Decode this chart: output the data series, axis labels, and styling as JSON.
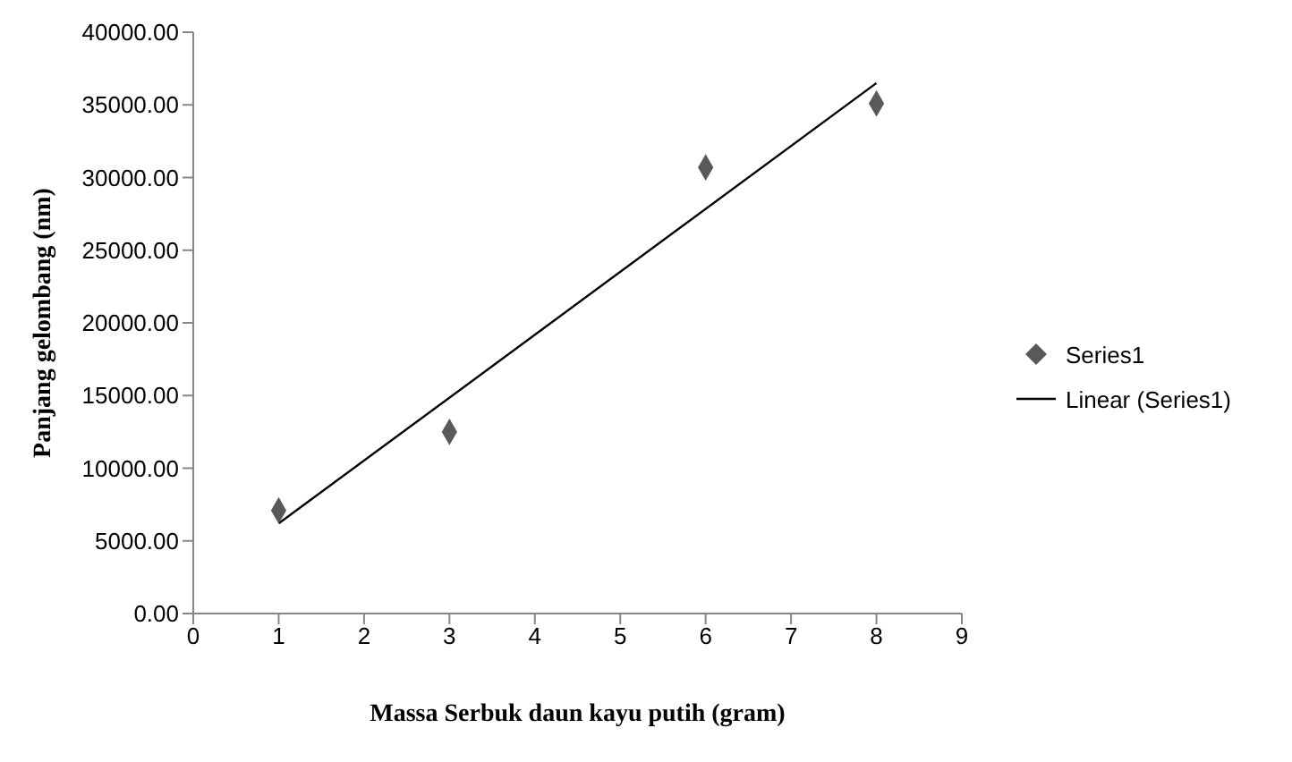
{
  "chart_data": {
    "type": "scatter",
    "xlabel": "Massa Serbuk daun kayu putih (gram)",
    "ylabel": "Panjang gelombang (nm)",
    "x": [
      1,
      3,
      6,
      8
    ],
    "series": [
      {
        "name": "Series1",
        "color": "#595959",
        "marker": "diamond",
        "values": [
          7100,
          12500,
          30700,
          35100
        ]
      },
      {
        "name": "Linear (Series1)",
        "type": "line",
        "color": "#000000",
        "marker": "none",
        "line_style": "solid",
        "x": [
          1,
          8
        ],
        "values": [
          6200,
          36500
        ]
      }
    ],
    "xlim": [
      0,
      9
    ],
    "xticks": [
      0,
      1,
      2,
      3,
      4,
      5,
      6,
      7,
      8,
      9
    ],
    "ylim": [
      0,
      40000
    ],
    "yticks": [
      {
        "value": 0,
        "label": "0.00"
      },
      {
        "value": 5000,
        "label": "5000.00"
      },
      {
        "value": 10000,
        "label": "10000.00"
      },
      {
        "value": 15000,
        "label": "15000.00"
      },
      {
        "value": 20000,
        "label": "20000.00"
      },
      {
        "value": 25000,
        "label": "25000.00"
      },
      {
        "value": 30000,
        "label": "30000.00"
      },
      {
        "value": 35000,
        "label": "35000.00"
      },
      {
        "value": 40000,
        "label": "40000.00"
      }
    ],
    "grid": false,
    "legend": "right"
  }
}
